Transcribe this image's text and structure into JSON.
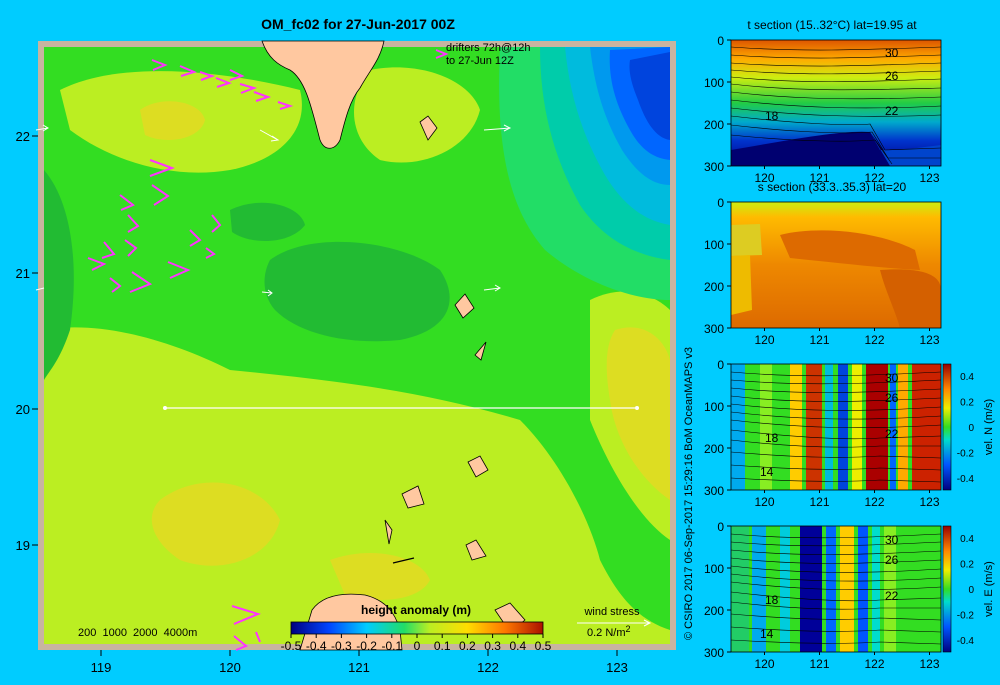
{
  "main_map": {
    "title": "OM_fc02 for 27-Jun-2017 00Z",
    "drifters_line1": "drifters 72h@12h",
    "drifters_line2": "to 27-Jun 12Z",
    "lat_ticks": [
      "22",
      "21",
      "20",
      "19"
    ],
    "lon_ticks": [
      "119",
      "120",
      "121",
      "122",
      "123"
    ],
    "depth_legend": "200  1000  2000  4000m",
    "colorbar_title": "height anomaly (m)",
    "colorbar_ticks": [
      "-0.5",
      "-0.4",
      "-0.3",
      "-0.2",
      "-0.1",
      "0",
      "0.1",
      "0.2",
      "0.3",
      "0.4",
      "0.5"
    ],
    "wind_label": "wind stress",
    "wind_scale": "0.2 N/m",
    "wind_scale_sup": "2",
    "section_line_lat": "20"
  },
  "credit": "© CSIRO 2017   06-Sep-2017 15:29:16 BoM OceanMAPS v3",
  "panels": [
    {
      "id": "t",
      "title": "t section (15..32°C) lat=19.95 at",
      "y_ticks": [
        "0",
        "100",
        "200",
        "300"
      ],
      "x_ticks": [
        "120",
        "121",
        "122",
        "123"
      ],
      "contour_labels": [
        "30",
        "26",
        "22",
        "18"
      ],
      "has_colorbar": false
    },
    {
      "id": "s",
      "title": "s section (33.3..35.3) lat=20",
      "y_ticks": [
        "0",
        "100",
        "200",
        "300"
      ],
      "x_ticks": [
        "120",
        "121",
        "122",
        "123"
      ],
      "contour_labels": [],
      "has_colorbar": false
    },
    {
      "id": "vn",
      "title": "",
      "y_ticks": [
        "0",
        "100",
        "200",
        "300"
      ],
      "x_ticks": [
        "120",
        "121",
        "122",
        "123"
      ],
      "contour_labels": [
        "30",
        "26",
        "22",
        "18",
        "14"
      ],
      "has_colorbar": true,
      "cb_label": "vel. N (m/s)",
      "cb_ticks": [
        "0.4",
        "0.2",
        "0",
        "-0.2",
        "-0.4"
      ]
    },
    {
      "id": "ve",
      "title": "",
      "y_ticks": [
        "0",
        "100",
        "200",
        "300"
      ],
      "x_ticks": [
        "120",
        "121",
        "122",
        "123"
      ],
      "contour_labels": [
        "30",
        "26",
        "22",
        "18",
        "14"
      ],
      "has_colorbar": true,
      "cb_label": "vel. E (m/s)",
      "cb_ticks": [
        "0.4",
        "0.2",
        "0",
        "-0.2",
        "-0.4"
      ]
    }
  ],
  "colors": {
    "background": "#00ccff",
    "frame": "#c8b4a0",
    "land": "#ffc8a0",
    "green_base": "#33dd22",
    "green_dark": "#22bb33",
    "yellow_green": "#bbee22",
    "yellow": "#dddd22",
    "drifter": "#ff33ff"
  }
}
